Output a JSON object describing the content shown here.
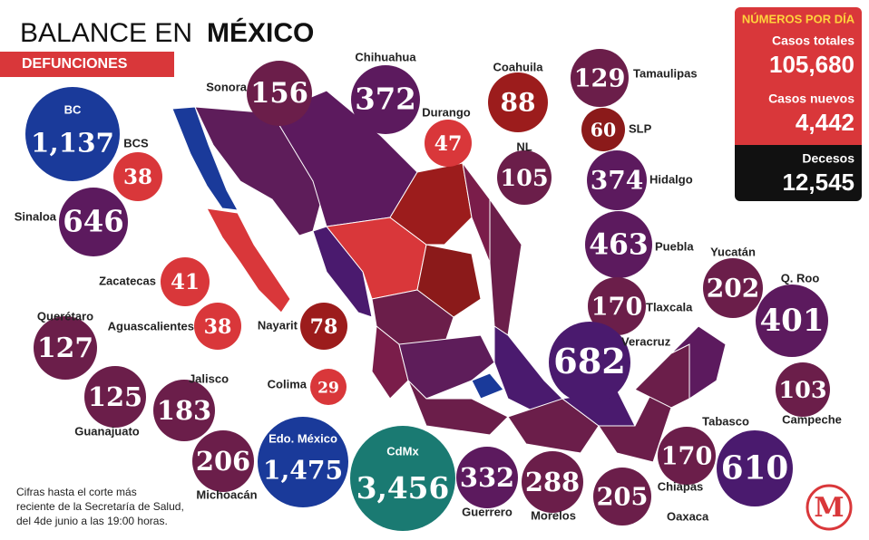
{
  "header": {
    "title": "BALANCE EN",
    "title_bold": "MÉXICO",
    "subtitle": "DEFUNCIONES"
  },
  "summary": {
    "title": "NÚMEROS POR DÍA",
    "items": [
      {
        "label": "Casos totales",
        "value": "105,680"
      },
      {
        "label": "Casos nuevos",
        "value": "4,442"
      },
      {
        "label": "Decesos",
        "value": "12,545"
      }
    ]
  },
  "states": [
    {
      "name": "BC",
      "deaths": "1,137"
    },
    {
      "name": "BCS",
      "deaths": "38"
    },
    {
      "name": "Sonora",
      "deaths": "156"
    },
    {
      "name": "Chihuahua",
      "deaths": "372"
    },
    {
      "name": "Durango",
      "deaths": "47"
    },
    {
      "name": "Coahuila",
      "deaths": "88"
    },
    {
      "name": "NL",
      "deaths": "105"
    },
    {
      "name": "Tamaulipas",
      "deaths": "129"
    },
    {
      "name": "SLP",
      "deaths": "60"
    },
    {
      "name": "Hidalgo",
      "deaths": "374"
    },
    {
      "name": "Puebla",
      "deaths": "463"
    },
    {
      "name": "Tlaxcala",
      "deaths": "170"
    },
    {
      "name": "Veracruz",
      "deaths": "682"
    },
    {
      "name": "Yucatán",
      "deaths": "202"
    },
    {
      "name": "Q. Roo",
      "deaths": "401"
    },
    {
      "name": "Campeche",
      "deaths": "103"
    },
    {
      "name": "Tabasco",
      "deaths": "610"
    },
    {
      "name": "Chiapas",
      "deaths": "170"
    },
    {
      "name": "Oaxaca",
      "deaths": "205"
    },
    {
      "name": "Morelos",
      "deaths": "288"
    },
    {
      "name": "Guerrero",
      "deaths": "332"
    },
    {
      "name": "CdMx",
      "deaths": "3,456"
    },
    {
      "name": "Edo. México",
      "deaths": "1,475"
    },
    {
      "name": "Michoacán",
      "deaths": "206"
    },
    {
      "name": "Jalisco",
      "deaths": "183"
    },
    {
      "name": "Guanajuato",
      "deaths": "125"
    },
    {
      "name": "Querétaro",
      "deaths": "127"
    },
    {
      "name": "Aguascalientes",
      "deaths": "38"
    },
    {
      "name": "Zacatecas",
      "deaths": "41"
    },
    {
      "name": "Colima",
      "deaths": "29"
    },
    {
      "name": "Nayarit",
      "deaths": "78"
    },
    {
      "name": "Sinaloa",
      "deaths": "646"
    }
  ],
  "footnote": [
    "Cifras hasta el corte más",
    "reciente de la Secretaría de Salud,",
    "del 4de junio a las 19:00 horas."
  ],
  "logo": "M"
}
